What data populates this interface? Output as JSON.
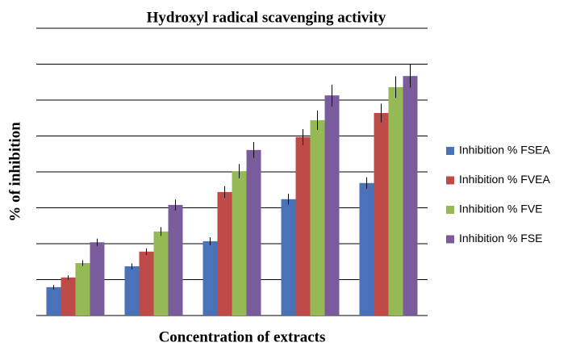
{
  "chart_data": {
    "type": "bar",
    "title": "Hydroxyl  radical scavenging  activity",
    "x_label": "Concentration of extracts",
    "y_label": "% of inhibition",
    "categories": [
      null,
      null,
      null,
      null,
      null
    ],
    "series": [
      {
        "name": "Inhibition % FSEA",
        "color": "#4a72b8",
        "values": [
          7.9,
          13.7,
          20.7,
          32.4,
          36.9
        ],
        "errors": [
          0.6,
          0.8,
          1.1,
          1.5,
          1.6
        ]
      },
      {
        "name": "Inhibition % FVEA",
        "color": "#be4b48",
        "values": [
          10.6,
          17.8,
          34.4,
          49.7,
          56.4
        ],
        "errors": [
          0.6,
          0.9,
          1.6,
          2.2,
          2.6
        ]
      },
      {
        "name": "Inhibition % FVE",
        "color": "#94b955",
        "values": [
          14.6,
          23.4,
          40.2,
          54.4,
          63.6
        ],
        "errors": [
          0.8,
          1.2,
          2.0,
          2.7,
          3.0
        ]
      },
      {
        "name": "Inhibition % FSE",
        "color": "#7a5c9c",
        "values": [
          20.4,
          30.8,
          46.1,
          61.3,
          66.7
        ],
        "errors": [
          1.0,
          1.5,
          2.2,
          3.0,
          3.2
        ]
      }
    ],
    "ylim": [
      0,
      80
    ],
    "yticks": [
      0,
      10,
      20,
      30,
      40,
      50,
      60,
      70,
      80
    ],
    "grid": true,
    "legend": "right"
  }
}
